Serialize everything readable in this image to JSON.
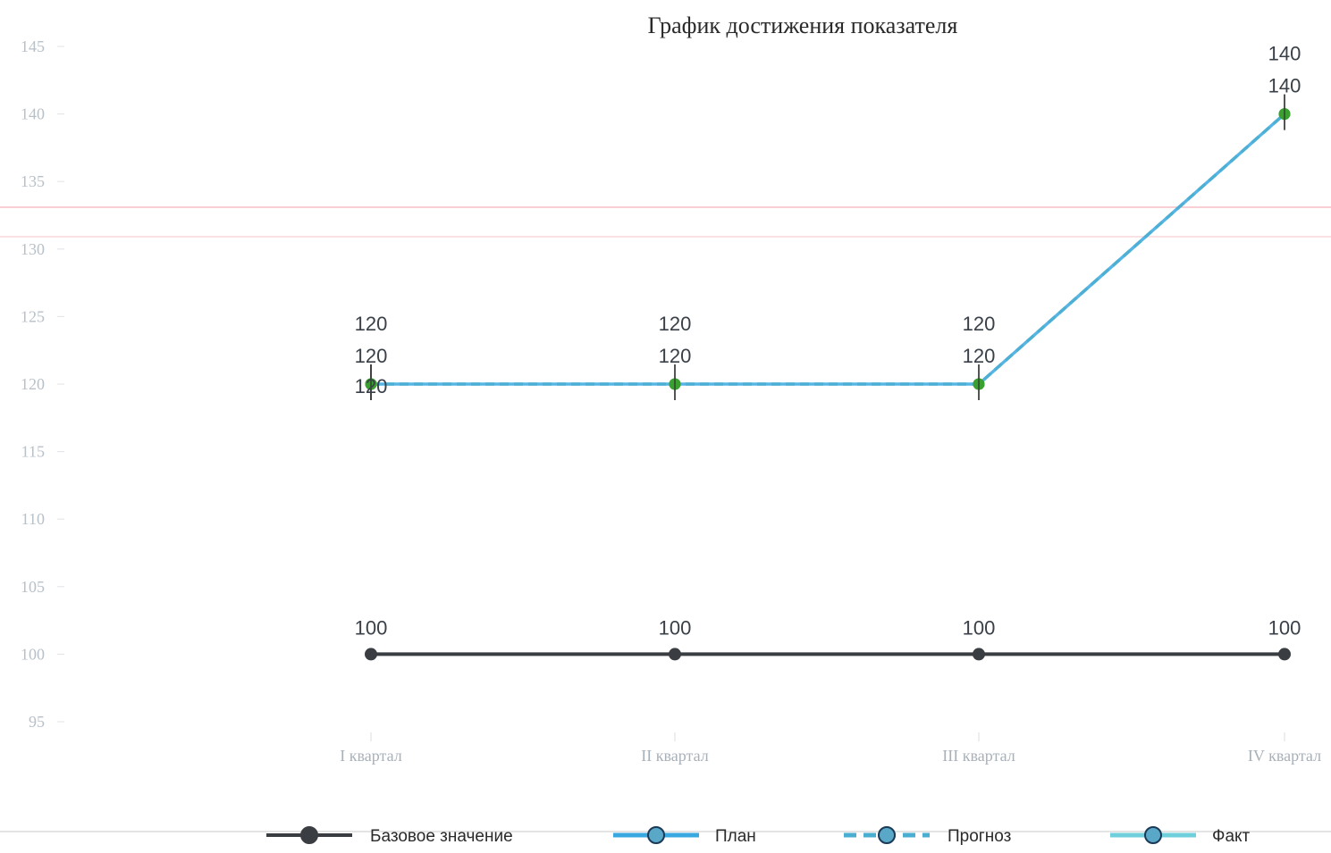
{
  "chart_data": {
    "type": "line",
    "title": "График достижения показателя",
    "categories": [
      "I квартал",
      "II квартал",
      "III квартал",
      "IV квартал"
    ],
    "ylim": [
      95,
      145
    ],
    "yticks": [
      "95",
      "100",
      "105",
      "110",
      "115",
      "120",
      "125",
      "130",
      "135",
      "140",
      "145"
    ],
    "grid": false,
    "legend_position": "bottom",
    "series": [
      {
        "name": "Базовое значение",
        "values": [
          100,
          100,
          100,
          100
        ],
        "labels": [
          "100",
          "100",
          "100",
          "100"
        ],
        "color": "#3a3d42",
        "style": "solid"
      },
      {
        "name": "План",
        "values": [
          120,
          120,
          120,
          140
        ],
        "labels": [
          "120",
          "120",
          "120",
          "140"
        ],
        "color": "#3aa8e0",
        "style": "solid"
      },
      {
        "name": "Прогноз",
        "values": [
          120,
          120,
          120,
          140
        ],
        "labels": [
          "120",
          "120",
          "120",
          "140"
        ],
        "color": "#4aaed0",
        "style": "dashed"
      },
      {
        "name": "Факт",
        "values": [
          120,
          null,
          null,
          null
        ],
        "labels": [
          "120",
          "",
          "",
          ""
        ],
        "color": "#6fd0dc",
        "style": "solid"
      }
    ],
    "point_color": "#3aa030"
  }
}
